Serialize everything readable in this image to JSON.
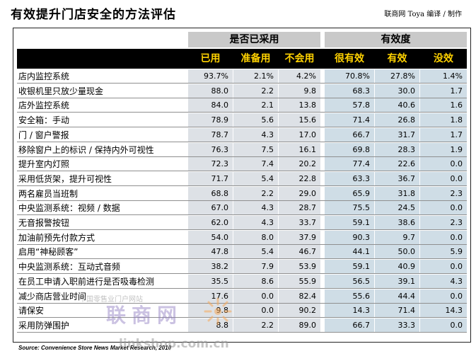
{
  "title": "有效提升门店安全的方法评估",
  "credit": "联商网 Toya 编译 / 制作",
  "groups": {
    "adoption": "是否已采用",
    "effectiveness": "有效度"
  },
  "columns": [
    "已用",
    "准备用",
    "不会用",
    "很有效",
    "有效",
    "没效"
  ],
  "rows": [
    {
      "label": "店内监控系统",
      "values": [
        "93.7%",
        "2.1%",
        "4.2%",
        "70.8%",
        "27.8%",
        "1.4%"
      ]
    },
    {
      "label": "收银机里只放少量现金",
      "values": [
        "88.0",
        "2.2",
        "9.8",
        "68.3",
        "30.0",
        "1.7"
      ]
    },
    {
      "label": "店外监控系统",
      "values": [
        "84.0",
        "2.1",
        "13.8",
        "57.8",
        "40.6",
        "1.6"
      ]
    },
    {
      "label": "安全箱：手动",
      "values": [
        "78.9",
        "5.6",
        "15.6",
        "71.4",
        "26.8",
        "1.8"
      ]
    },
    {
      "label": "门 / 窗户警报",
      "values": [
        "78.7",
        "4.3",
        "17.0",
        "66.7",
        "31.7",
        "1.7"
      ]
    },
    {
      "label": "移除窗户上的标识 / 保持内外可视性",
      "values": [
        "76.3",
        "7.5",
        "16.1",
        "69.8",
        "28.3",
        "1.9"
      ]
    },
    {
      "label": "提升室内灯照",
      "values": [
        "72.3",
        "7.4",
        "20.2",
        "77.4",
        "22.6",
        "0.0"
      ]
    },
    {
      "label": "采用低货架，提升可视性",
      "values": [
        "71.7",
        "5.4",
        "22.8",
        "63.3",
        "36.7",
        "0.0"
      ]
    },
    {
      "label": "两名雇员当班制",
      "values": [
        "68.8",
        "2.2",
        "29.0",
        "65.9",
        "31.8",
        "2.3"
      ]
    },
    {
      "label": "中央监测系统：视频 / 数据",
      "values": [
        "67.0",
        "4.3",
        "28.7",
        "75.5",
        "24.5",
        "0.0"
      ]
    },
    {
      "label": "无音报警按钮",
      "values": [
        "62.0",
        "4.3",
        "33.7",
        "59.1",
        "38.6",
        "2.3"
      ]
    },
    {
      "label": "加油前预先付款方式",
      "values": [
        "54.0",
        "8.0",
        "37.9",
        "90.3",
        "9.7",
        "0.0"
      ]
    },
    {
      "label": "启用“神秘顾客”",
      "values": [
        "47.8",
        "5.4",
        "46.7",
        "44.1",
        "50.0",
        "5.9"
      ]
    },
    {
      "label": "中央监测系统：互动式音频",
      "values": [
        "38.2",
        "7.9",
        "53.9",
        "59.1",
        "40.9",
        "0.0"
      ]
    },
    {
      "label": "在员工申请入职前进行是否吸毒检测",
      "values": [
        "35.5",
        "8.6",
        "55.9",
        "56.5",
        "39.1",
        "4.3"
      ]
    },
    {
      "label": "减少商店营业时间",
      "values": [
        "17.6",
        "0.0",
        "82.4",
        "55.6",
        "44.4",
        "0.0"
      ]
    },
    {
      "label": "请保安",
      "values": [
        "9.8",
        "0.0",
        "90.2",
        "14.3",
        "71.4",
        "14.3"
      ]
    },
    {
      "label": "采用防弹围护",
      "values": [
        "8.8",
        "2.2",
        "89.0",
        "66.7",
        "33.3",
        "0.0"
      ]
    }
  ],
  "source": "Source: Convenience Store News Market Research, 2010",
  "watermark": {
    "small": "中国零售业门户网站",
    "big": "联商网",
    "url": "linkshop.com.cn"
  },
  "colors": {
    "header_bg": "#000000",
    "header_text": "#ffd200",
    "group_bg": "#c9c9c9",
    "adoption_cell": "#dde1e6",
    "effect_cell": "#cfdde6"
  }
}
